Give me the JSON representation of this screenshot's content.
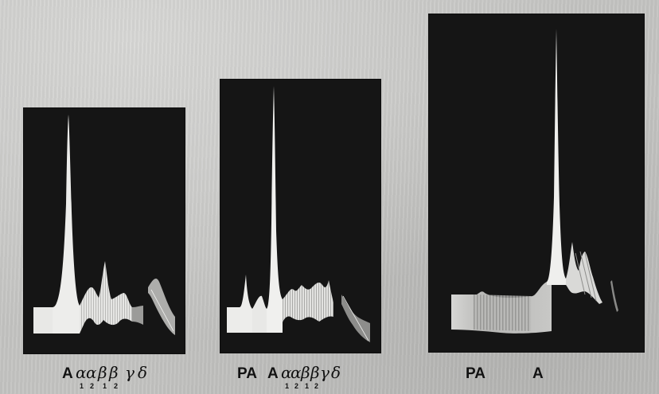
{
  "panels": [
    {
      "labels": {
        "a": "A",
        "alpha_1": "α",
        "alpha_1_sub": "1",
        "alpha_2": "α",
        "alpha_2_sub": "2",
        "beta_1": "β",
        "beta_1_sub": "1",
        "beta_2": "β",
        "beta_2_sub": "2",
        "gamma": "γ",
        "delta": "δ"
      }
    },
    {
      "labels": {
        "pa": "PA",
        "a": "A",
        "alpha_1": "α",
        "alpha_1_sub": "1",
        "alpha_2": "α",
        "alpha_2_sub": "2",
        "beta_1": "β",
        "beta_1_sub": "1",
        "beta_2": "β",
        "beta_2_sub": "2",
        "gamma": "γ",
        "delta": "δ"
      }
    },
    {
      "labels": {
        "pa": "PA",
        "a": "A"
      }
    }
  ],
  "colors": {
    "background": "#c4c4c2",
    "panel": "#151515",
    "trace": "#ececea",
    "label_text": "#121212"
  }
}
